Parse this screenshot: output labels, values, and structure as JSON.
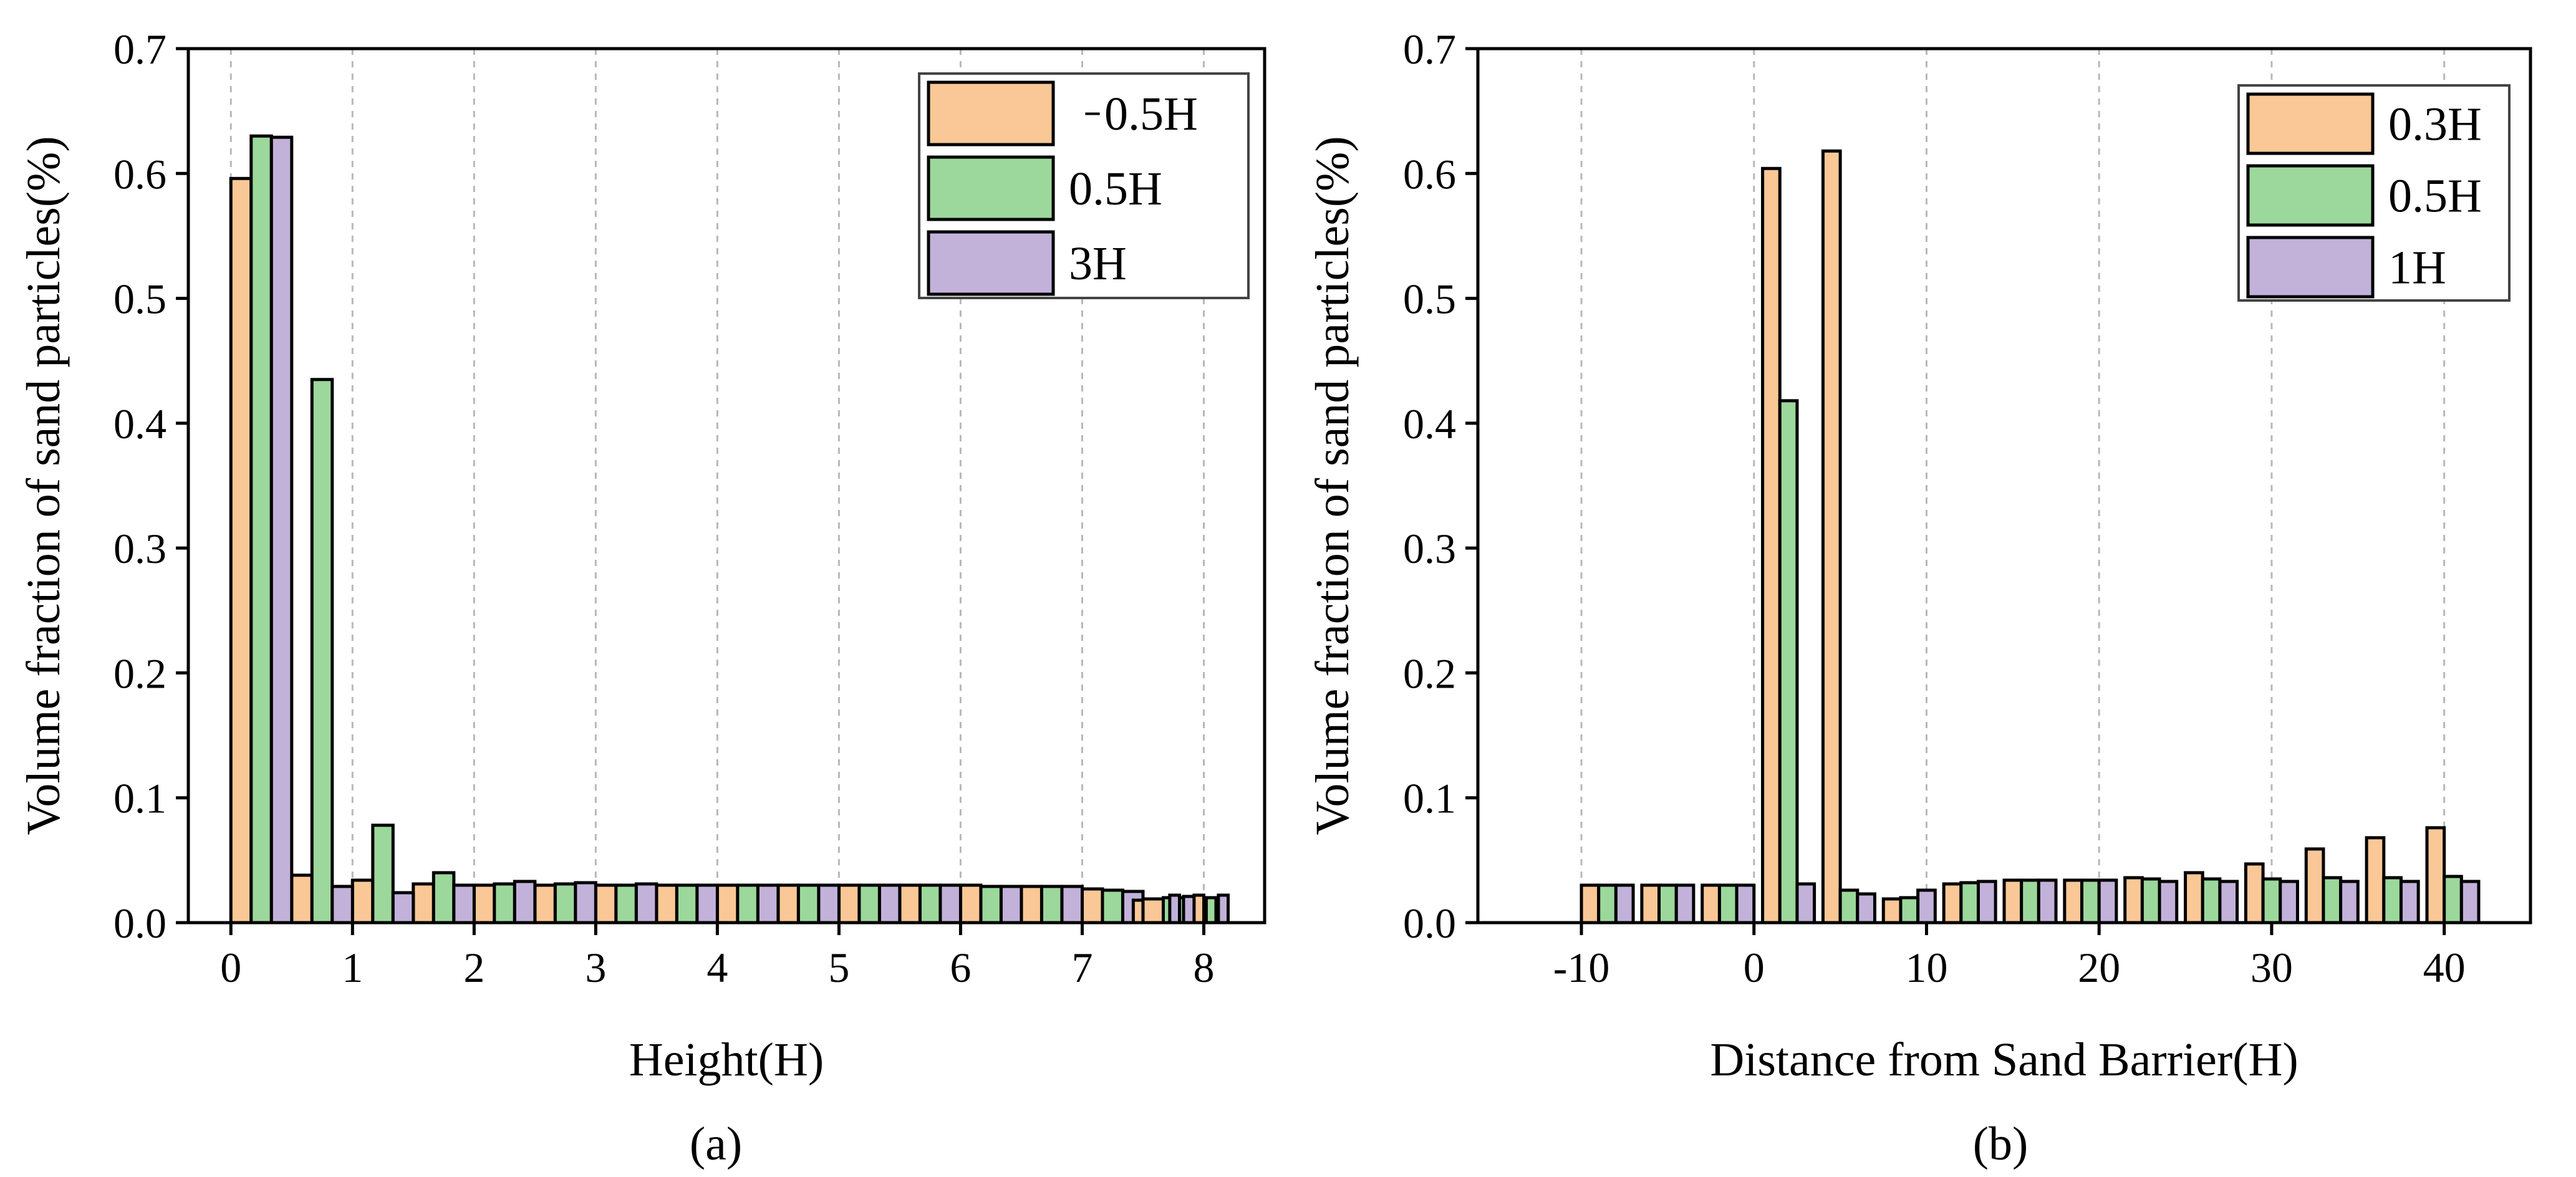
{
  "figure": {
    "panel_a_label": "(a)",
    "panel_b_label": "(b)"
  },
  "colors": {
    "orange": "#F9C896",
    "green": "#9CD89C",
    "purple": "#C2B2DA",
    "axis": "#000000",
    "grid": "#B8B8B8"
  },
  "chart_data": [
    {
      "type": "bar",
      "panel": "(a)",
      "title": "",
      "xlabel": "Height(H)",
      "ylabel": "Volume fraction of sand particles(%)",
      "xlim": [
        -0.35,
        8.5
      ],
      "ylim": [
        0,
        0.7
      ],
      "xticks": [
        0,
        1,
        2,
        3,
        4,
        5,
        6,
        7,
        8
      ],
      "yticks": [
        0.0,
        0.1,
        0.2,
        0.3,
        0.4,
        0.5,
        0.6,
        0.7
      ],
      "ytick_labels": [
        "0.0",
        "0.1",
        "0.2",
        "0.3",
        "0.4",
        "0.5",
        "0.6",
        "0.7"
      ],
      "grid": "vertical-dashed",
      "legend_position": "top-right",
      "x": [
        0,
        0.5,
        1,
        1.5,
        2,
        2.5,
        3,
        3.5,
        4,
        4.5,
        5,
        5.5,
        6,
        6.5,
        7,
        7.5
      ],
      "bar_group_width": 0.5,
      "series": [
        {
          "name": "  ̵ 0.5H",
          "color": "#F9C896",
          "values": [
            0.596,
            0.038,
            0.034,
            0.031,
            0.03,
            0.03,
            0.03,
            0.03,
            0.03,
            0.03,
            0.03,
            0.03,
            0.03,
            0.029,
            0.027,
            0.019
          ]
        },
        {
          "name": "0.5H",
          "color": "#9CD89C",
          "values": [
            0.63,
            0.435,
            0.078,
            0.04,
            0.031,
            0.031,
            0.03,
            0.03,
            0.03,
            0.03,
            0.03,
            0.03,
            0.029,
            0.029,
            0.026,
            0.02
          ]
        },
        {
          "name": "3H",
          "color": "#C2B2DA",
          "values": [
            0.629,
            0.029,
            0.024,
            0.03,
            0.033,
            0.032,
            0.031,
            0.03,
            0.03,
            0.03,
            0.03,
            0.03,
            0.029,
            0.029,
            0.025,
            0.021
          ]
        }
      ],
      "extra_bars": [
        {
          "x": 7.42,
          "width": 0.08,
          "value": 0.018,
          "color": "#F9C896"
        },
        {
          "x": 7.72,
          "width": 0.08,
          "value": 0.022,
          "color": "#C2B2DA"
        },
        {
          "x": 7.92,
          "width": 0.08,
          "value": 0.022,
          "color": "#F9C896"
        },
        {
          "x": 8.02,
          "width": 0.08,
          "value": 0.02,
          "color": "#9CD89C"
        },
        {
          "x": 8.12,
          "width": 0.08,
          "value": 0.022,
          "color": "#C2B2DA"
        }
      ]
    },
    {
      "type": "bar",
      "panel": "(b)",
      "title": "",
      "xlabel": "Distance from Sand Barrier(H)",
      "ylabel": "Volume fraction of sand particles(%)",
      "xlim": [
        -16,
        45
      ],
      "ylim": [
        0,
        0.7
      ],
      "xticks": [
        -10,
        0,
        10,
        20,
        30,
        40
      ],
      "yticks": [
        0.0,
        0.1,
        0.2,
        0.3,
        0.4,
        0.5,
        0.6,
        0.7
      ],
      "ytick_labels": [
        "0.0",
        "0.1",
        "0.2",
        "0.3",
        "0.4",
        "0.5",
        "0.6",
        "0.7"
      ],
      "grid": "vertical-dashed",
      "legend_position": "top-right",
      "x": [
        -10,
        -6.5,
        -3,
        0.5,
        4,
        7.5,
        11,
        14.5,
        18,
        21.5,
        25,
        28.5,
        32,
        35.5,
        39
      ],
      "bar_group_width": 3,
      "series": [
        {
          "name": "0.3H",
          "color": "#F9C896",
          "values": [
            0.03,
            0.03,
            0.03,
            0.604,
            0.618,
            0.019,
            0.031,
            0.034,
            0.034,
            0.036,
            0.04,
            0.047,
            0.059,
            0.068,
            0.076
          ]
        },
        {
          "name": "0.5H",
          "color": "#9CD89C",
          "values": [
            0.03,
            0.03,
            0.03,
            0.418,
            0.026,
            0.02,
            0.032,
            0.034,
            0.034,
            0.035,
            0.035,
            0.035,
            0.036,
            0.036,
            0.037
          ]
        },
        {
          "name": "1H",
          "color": "#C2B2DA",
          "values": [
            0.03,
            0.03,
            0.03,
            0.031,
            0.023,
            0.026,
            0.033,
            0.034,
            0.034,
            0.033,
            0.033,
            0.033,
            0.033,
            0.033,
            0.033
          ]
        }
      ],
      "extra_bars": []
    }
  ]
}
